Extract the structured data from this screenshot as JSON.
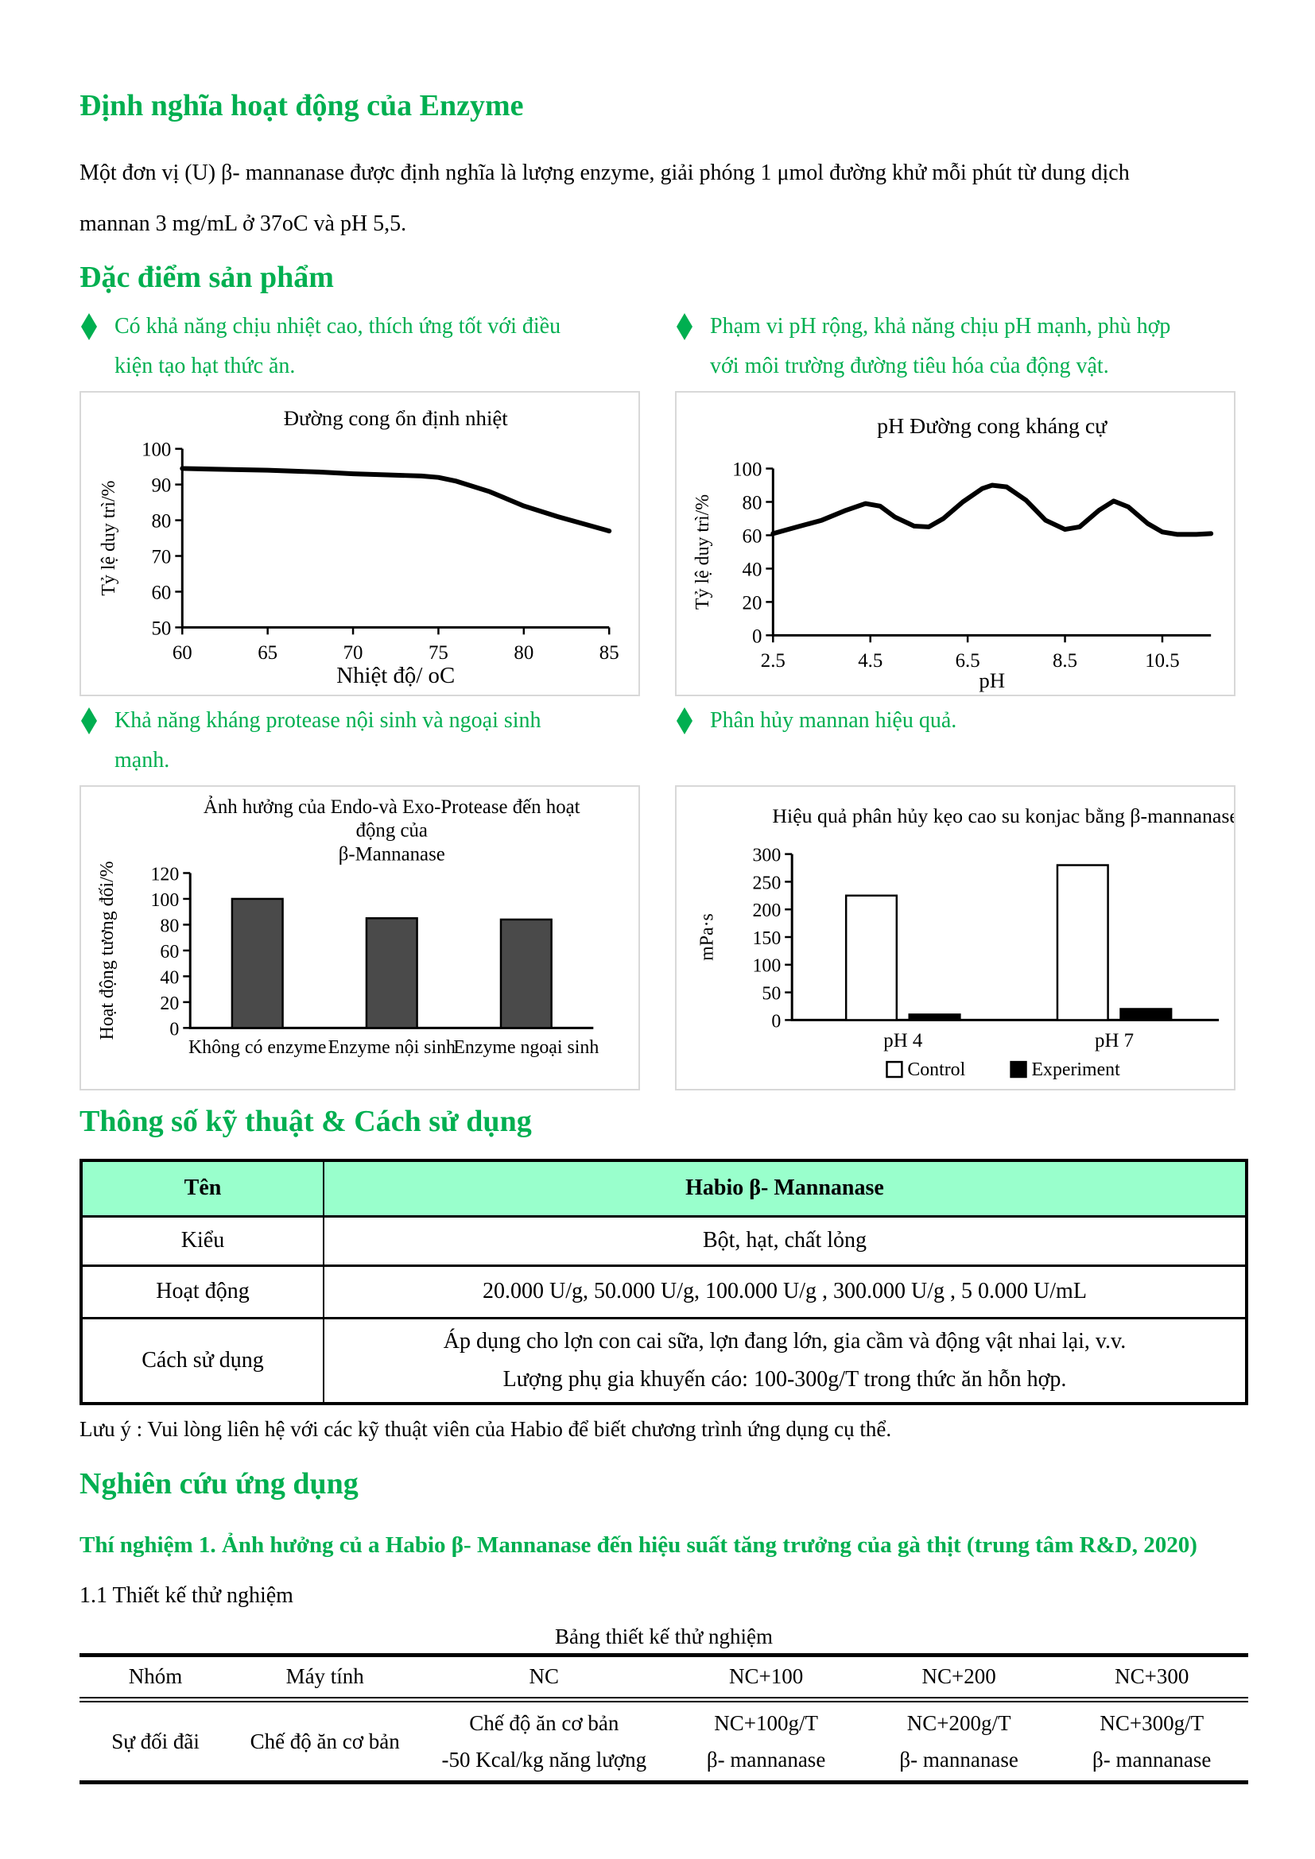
{
  "colors": {
    "accent_green": "#00AF50",
    "table_header_bg": "#99FFCC",
    "bar_gray": "#4a4a4a",
    "panel_border": "#d8d8d8"
  },
  "sections": {
    "definition": {
      "title": "Định nghĩa hoạt động của Enzyme",
      "paragraph_lines": [
        "Một đơn vị (U) β- mannanase được định nghĩa là lượng enzyme, giải phóng 1 μmol đường khử mỗi phút từ dung dịch",
        "mannan 3 mg/mL ở 37oC và pH 5,5."
      ]
    },
    "features_title": "Đặc điểm sản phẩm",
    "spec_title": "Thông số kỹ thuật & Cách sử dụng",
    "research_title": "Nghiên cứu ứng dụng"
  },
  "features": [
    {
      "text": "Có khả năng chịu nhiệt cao, thích ứng tốt với điều kiện tạo hạt thức ăn."
    },
    {
      "text": "Phạm vi pH rộng, khả năng chịu pH mạnh, phù hợp với môi trường đường tiêu hóa của động vật."
    },
    {
      "text": "Khả năng kháng protease nội sinh và ngoại sinh mạnh."
    },
    {
      "text": "Phân hủy mannan hiệu quả."
    }
  ],
  "chart_data": [
    {
      "type": "line",
      "title": "Đường cong ổn định nhiệt",
      "xlabel": "Nhiệt độ/ oC",
      "ylabel": "Tỷ lệ duy trì/%",
      "xlim": [
        60,
        85
      ],
      "ylim": [
        50,
        100
      ],
      "xticks": [
        "60",
        "65",
        "70",
        "75",
        "80",
        "85"
      ],
      "yticks": [
        "50",
        "60",
        "70",
        "80",
        "90",
        "100"
      ],
      "grid": false,
      "x": [
        60,
        62,
        65,
        68,
        70,
        72,
        74,
        75,
        76,
        78,
        80,
        82,
        85
      ],
      "y": [
        94.5,
        94.3,
        94,
        93.5,
        93,
        92.7,
        92.4,
        92,
        91,
        88,
        84,
        81,
        77
      ]
    },
    {
      "type": "line",
      "title": "pH Đường cong kháng cự",
      "xlabel": "pH",
      "ylabel": "Tỷ lệ duy trì/%",
      "xlim": [
        2.5,
        11.5
      ],
      "ylim": [
        0,
        100
      ],
      "xticks": [
        "2.5",
        "4.5",
        "6.5",
        "8.5",
        "10.5"
      ],
      "yticks": [
        "0",
        "20",
        "40",
        "60",
        "80",
        "100"
      ],
      "grid": false,
      "x": [
        2.5,
        3,
        3.5,
        4,
        4.4,
        4.7,
        5,
        5.4,
        5.7,
        6,
        6.4,
        6.8,
        7,
        7.3,
        7.7,
        8.1,
        8.5,
        8.8,
        9.2,
        9.5,
        9.8,
        10.2,
        10.5,
        10.8,
        11.2,
        11.5
      ],
      "y": [
        61,
        65,
        69,
        75,
        79,
        77.5,
        71,
        65.5,
        65,
        70,
        80,
        88,
        90,
        89,
        81,
        69,
        63.5,
        65,
        75,
        80.5,
        77,
        67,
        62,
        60.5,
        60.5,
        61
      ]
    },
    {
      "type": "bar",
      "title_lines": [
        "Ảnh hưởng của Endo-và Exo-Protease đến hoạt",
        "động của",
        "β-Mannanase"
      ],
      "ylabel": "Hoạt động tương đối/%",
      "ylim": [
        0,
        120
      ],
      "yticks": [
        "0",
        "20",
        "40",
        "60",
        "80",
        "100",
        "120"
      ],
      "categories": [
        "Không có enzyme",
        "Enzyme nội sinh",
        "Enzyme ngoại sinh"
      ],
      "values": [
        100,
        85,
        84
      ],
      "bar_color": "#4a4a4a"
    },
    {
      "type": "grouped-bar",
      "title": "Hiệu quả phân hủy kẹo cao su konjac bằng β-mannanase",
      "ylabel": "mPa·s",
      "ylim": [
        0,
        300
      ],
      "yticks": [
        "0",
        "50",
        "100",
        "150",
        "200",
        "250",
        "300"
      ],
      "categories": [
        "pH 4",
        "pH 7"
      ],
      "series": [
        {
          "name": "Control",
          "values": [
            225,
            280
          ],
          "fill": "#ffffff"
        },
        {
          "name": "Experiment",
          "values": [
            10,
            20
          ],
          "fill": "#000000"
        }
      ],
      "legend_position": "bottom"
    }
  ],
  "spec": {
    "header": [
      "Tên",
      "Habio β- Mannanase"
    ],
    "rows": [
      {
        "k": "Kiểu",
        "v": "Bột, hạt, chất lỏng"
      },
      {
        "k": "Hoạt động",
        "v": "20.000 U/g, 50.000 U/g, 100.000 U/g , 300.000 U/g , 5 0.000 U/mL"
      },
      {
        "k": "Cách sử dụng",
        "v_lines": [
          "Áp dụng cho lợn con cai sữa, lợn đang lớn, gia cầm và động vật nhai lại, v.v.",
          "Lượng phụ gia khuyến cáo: 100-300g/T trong thức ăn hỗn hợp."
        ]
      }
    ],
    "note": "Lưu ý : Vui lòng liên hệ với các kỹ thuật viên của Habio để biết chương trình ứng dụng cụ thể."
  },
  "research": {
    "exp_title": "Thí nghiệm 1. Ảnh hưởng củ a Habio β- Mannanase đến hiệu suất tăng trưởng của gà thịt (trung tâm R&D, 2020)",
    "design_label": "1.1 Thiết kế thử nghiệm",
    "table_caption": "Bảng thiết kế thử nghiệm",
    "table": {
      "headers": [
        "Nhóm",
        "Máy tính",
        "NC",
        "NC+100",
        "NC+200",
        "NC+300"
      ],
      "row": [
        [
          "Sự đối đãi"
        ],
        [
          "Chế độ ăn cơ bản"
        ],
        [
          "Chế độ ăn cơ bản",
          "-50 Kcal/kg năng lượng"
        ],
        [
          "NC+100g/T",
          "β- mannanase"
        ],
        [
          "NC+200g/T",
          "β- mannanase"
        ],
        [
          "NC+300g/T",
          "β- mannanase"
        ]
      ]
    }
  }
}
